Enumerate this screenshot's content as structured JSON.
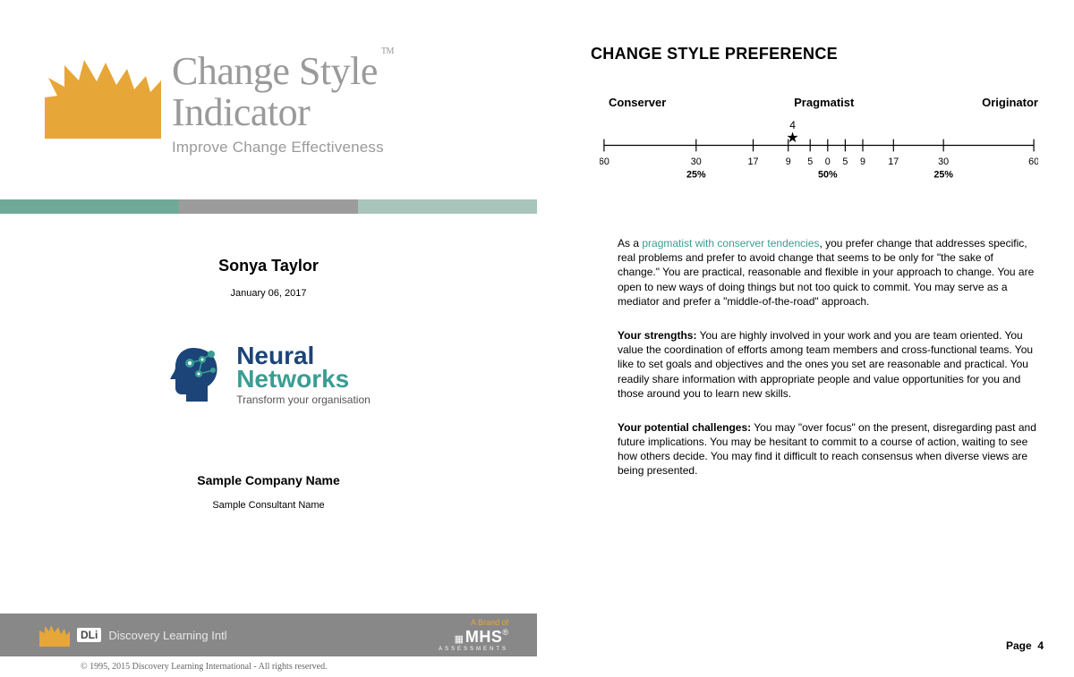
{
  "cover": {
    "logo_title_line1": "Change Style",
    "logo_title_line2": "Indicator",
    "logo_subtitle": "Improve Change Effectiveness",
    "tm": "TM",
    "color_bar": [
      "#6faa98",
      "#9c9c9c",
      "#a8c5bb"
    ],
    "person_name": "Sonya Taylor",
    "report_date": "January 06, 2017",
    "nn_title1": "Neural",
    "nn_title2": "Networks",
    "nn_tagline": "Transform your organisation",
    "company_name": "Sample Company Name",
    "consultant_name": "Sample Consultant Name",
    "dli_text": "Discovery Learning Intl",
    "mhs_brand": "A Brand of",
    "mhs_main": "MHS",
    "mhs_reg": "®",
    "mhs_sub": "ASSESSMENTS",
    "copyright": "© 1995, 2015 Discovery Learning International - All rights reserved.",
    "sunburst_color": "#e6a738",
    "nn_head_color": "#1c4478",
    "nn_dots_color": "#3a9d93"
  },
  "report": {
    "heading": "CHANGE STYLE PREFERENCE",
    "scale": {
      "left_label": "Conserver",
      "mid_label": "Pragmatist",
      "right_label": "Originator",
      "ticks": [
        "60",
        "30",
        "17",
        "9",
        "5",
        "0",
        "5",
        "9",
        "17",
        "30",
        "60"
      ],
      "percent_left": "25%",
      "percent_mid": "50%",
      "percent_right": "25%",
      "score_value": "4",
      "score_position_pct": 44
    },
    "para1_prefix": "As a ",
    "para1_highlight": "pragmatist with conserver tendencies",
    "para1_rest": ", you prefer change that addresses specific, real problems and prefer to avoid change that seems to be only for \"the sake of change.\" You are practical, reasonable and flexible in your approach to change. You are open to new ways of doing things but not too quick to commit. You may serve as a mediator and prefer a \"middle-of-the-road\" approach.",
    "para2_label": "Your strengths:",
    "para2_text": " You are highly involved in your work and you are team oriented. You value the coordination of efforts among team members and cross-functional teams. You like to set goals and objectives and the ones you set are reasonable and practical. You readily share information with appropriate people and value opportunities for you and those around you to learn new skills.",
    "para3_label": "Your potential challenges:",
    "para3_text": " You may \"over focus\" on the present, disregarding past and future implications. You may be hesitant to commit to a course of action, waiting to see how others decide. You may find it difficult to reach consensus when diverse views are being presented.",
    "page_label": "Page",
    "page_number": "4"
  }
}
